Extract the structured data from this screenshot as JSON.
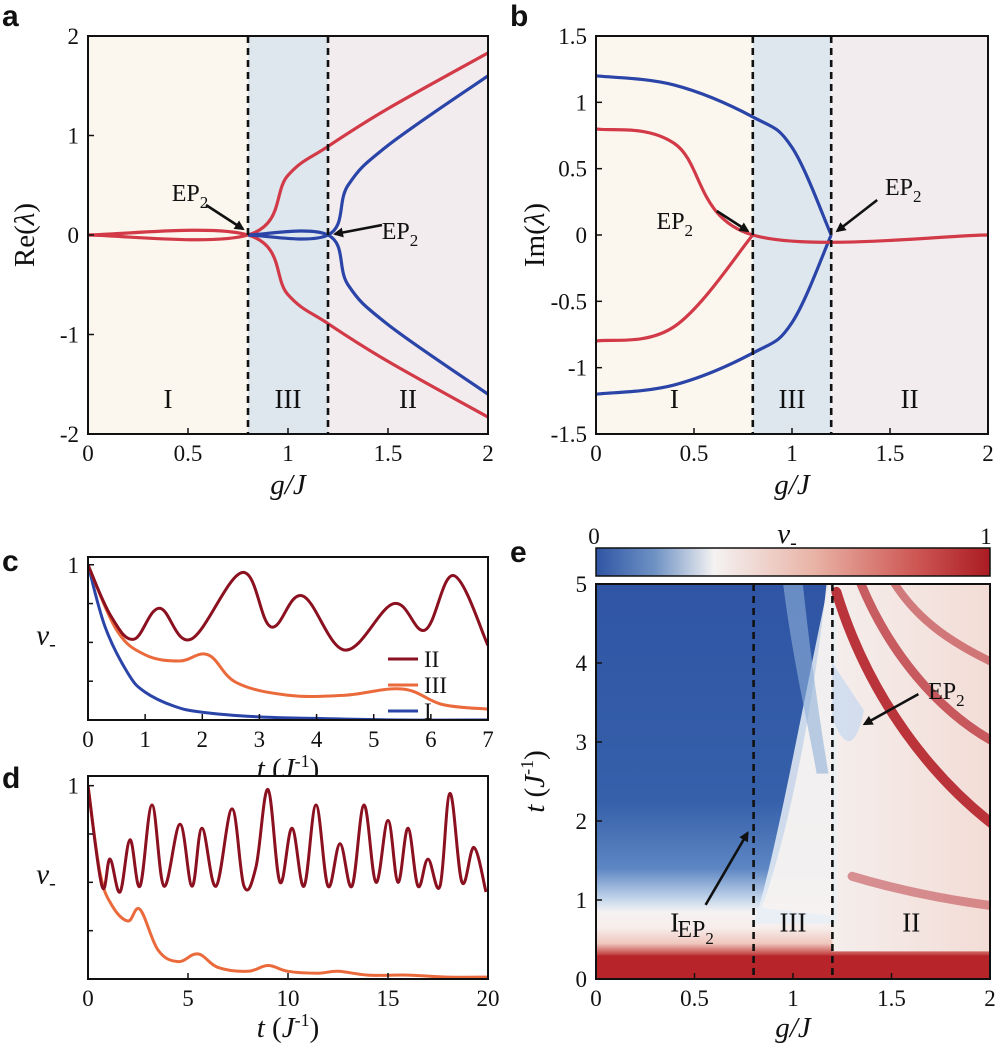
{
  "chart_data": [
    {
      "panel": "a",
      "type": "line",
      "xlabel": "g/J",
      "ylabel": "Re(λ)",
      "xlim": [
        0,
        2
      ],
      "ylim": [
        -2,
        2
      ],
      "xticks": [
        "0",
        "0.5",
        "1",
        "1.5",
        "2"
      ],
      "yticks": [
        "2",
        "1",
        "0",
        "-1",
        "-2"
      ],
      "regions": [
        {
          "label": "I",
          "from": 0,
          "to": 0.8,
          "color": "#fbf7ee"
        },
        {
          "label": "III",
          "from": 0.8,
          "to": 1.2,
          "color": "#dde7ed"
        },
        {
          "label": "II",
          "from": 1.2,
          "to": 2,
          "color": "#f2ecef"
        }
      ],
      "exceptional_points": [
        0.8,
        1.2
      ],
      "annotations": [
        {
          "text": "EP2",
          "x": 0.8,
          "y": 0
        },
        {
          "text": "EP2",
          "x": 1.2,
          "y": 0
        }
      ],
      "series": [
        {
          "color": "#d23a48",
          "x": [
            0,
            0.8,
            1.0,
            1.2,
            1.5,
            2.0
          ],
          "values": [
            0,
            0,
            0.6,
            0.89,
            1.27,
            1.83
          ]
        },
        {
          "color": "#d23a48",
          "x": [
            0,
            0.8,
            1.0,
            1.2,
            1.5,
            2.0
          ],
          "values": [
            0,
            0,
            -0.6,
            -0.89,
            -1.27,
            -1.83
          ]
        },
        {
          "color": "#2a44a8",
          "x": [
            0.8,
            1.2,
            1.3,
            1.5,
            2.0
          ],
          "values": [
            0,
            0,
            0.5,
            0.9,
            1.6
          ]
        },
        {
          "color": "#2a44a8",
          "x": [
            0.8,
            1.2,
            1.3,
            1.5,
            2.0
          ],
          "values": [
            0,
            0,
            -0.5,
            -0.9,
            -1.6
          ]
        }
      ]
    },
    {
      "panel": "b",
      "type": "line",
      "xlabel": "g/J",
      "ylabel": "Im(λ)",
      "xlim": [
        0,
        2
      ],
      "ylim": [
        -1.5,
        1.5
      ],
      "xticks": [
        "0",
        "0.5",
        "1",
        "1.5",
        "2"
      ],
      "yticks": [
        "1.5",
        "1",
        "0.5",
        "0",
        "-0.5",
        "-1",
        "-1.5"
      ],
      "regions": [
        {
          "label": "I",
          "from": 0,
          "to": 0.8,
          "color": "#fbf7ee"
        },
        {
          "label": "III",
          "from": 0.8,
          "to": 1.2,
          "color": "#dde7ed"
        },
        {
          "label": "II",
          "from": 1.2,
          "to": 2,
          "color": "#f2ecef"
        }
      ],
      "exceptional_points": [
        0.8,
        1.2
      ],
      "annotations": [
        {
          "text": "EP2",
          "x": 0.8,
          "y": 0
        },
        {
          "text": "EP2",
          "x": 1.2,
          "y": 0
        }
      ],
      "series": [
        {
          "color": "#2a44a8",
          "x": [
            0,
            0.4,
            0.8,
            1.0,
            1.2
          ],
          "values": [
            1.2,
            1.13,
            0.89,
            0.66,
            0
          ]
        },
        {
          "color": "#2a44a8",
          "x": [
            0,
            0.4,
            0.8,
            1.0,
            1.2
          ],
          "values": [
            -1.2,
            -1.13,
            -0.89,
            -0.66,
            0
          ]
        },
        {
          "color": "#d23a48",
          "x": [
            0,
            0.4,
            0.8,
            2.0
          ],
          "values": [
            0.8,
            0.69,
            0,
            0
          ]
        },
        {
          "color": "#d23a48",
          "x": [
            0,
            0.4,
            0.8
          ],
          "values": [
            -0.8,
            -0.69,
            0
          ]
        }
      ]
    },
    {
      "panel": "c",
      "type": "line",
      "xlabel": "t (J-1)",
      "ylabel": "v-",
      "xlim": [
        0,
        7
      ],
      "ylim": [
        0,
        1.05
      ],
      "xticks": [
        "0",
        "1",
        "2",
        "3",
        "4",
        "5",
        "6",
        "7"
      ],
      "yticks": [
        "1"
      ],
      "legend": "right",
      "series": [
        {
          "name": "II",
          "color": "#8b1020",
          "x": [
            0,
            0.4,
            0.8,
            1.25,
            1.8,
            2.7,
            3.2,
            3.75,
            4.5,
            5.35,
            5.9,
            6.4,
            7.0
          ],
          "values": [
            1.0,
            0.67,
            0.52,
            0.72,
            0.52,
            0.95,
            0.6,
            0.8,
            0.45,
            0.75,
            0.58,
            0.93,
            0.48
          ]
        },
        {
          "name": "III",
          "color": "#ea6a3c",
          "x": [
            0,
            0.5,
            1.0,
            1.6,
            2.1,
            2.6,
            3.5,
            4.5,
            5.5,
            6.2,
            7.0
          ],
          "values": [
            1.0,
            0.58,
            0.42,
            0.38,
            0.42,
            0.24,
            0.16,
            0.16,
            0.2,
            0.1,
            0.07
          ]
        },
        {
          "name": "I",
          "color": "#2a44a8",
          "x": [
            0,
            0.3,
            0.7,
            1.0,
            1.5,
            2.0,
            3.0,
            4.0,
            5.5,
            7.0
          ],
          "values": [
            1.0,
            0.6,
            0.3,
            0.18,
            0.09,
            0.05,
            0.02,
            0.01,
            0.0,
            0.0
          ]
        }
      ]
    },
    {
      "panel": "d",
      "type": "line",
      "xlabel": "t (J-1)",
      "ylabel": "v-",
      "xlim": [
        0,
        20
      ],
      "ylim": [
        0,
        1.05
      ],
      "xticks": [
        "0",
        "5",
        "10",
        "15",
        "20"
      ],
      "yticks": [
        "1"
      ],
      "series": [
        {
          "color": "#8b1020",
          "x": [
            0,
            0.7,
            1.1,
            1.6,
            2.1,
            2.6,
            3.2,
            3.8,
            4.6,
            5.2,
            5.7,
            6.4,
            7.2,
            7.8,
            8.4,
            9.0,
            9.6,
            10.2,
            10.8,
            11.4,
            12.0,
            12.6,
            13.2,
            13.8,
            14.4,
            15.0,
            15.5,
            16.0,
            16.5,
            17.0,
            17.6,
            18.1,
            18.7,
            19.3,
            19.9
          ],
          "values": [
            1.0,
            0.48,
            0.62,
            0.45,
            0.72,
            0.48,
            0.9,
            0.48,
            0.8,
            0.48,
            0.78,
            0.48,
            0.88,
            0.48,
            0.58,
            0.98,
            0.5,
            0.78,
            0.48,
            0.9,
            0.48,
            0.7,
            0.48,
            0.9,
            0.5,
            0.82,
            0.5,
            0.78,
            0.48,
            0.62,
            0.48,
            0.96,
            0.5,
            0.68,
            0.45
          ]
        },
        {
          "color": "#ea6a3c",
          "x": [
            0,
            0.6,
            1.2,
            2.0,
            2.6,
            3.5,
            4.5,
            5.5,
            6.5,
            8.0,
            9.0,
            10.0,
            11.5,
            12.5,
            14.0,
            16.0,
            18.0,
            20.0
          ],
          "values": [
            1.0,
            0.55,
            0.38,
            0.3,
            0.36,
            0.15,
            0.09,
            0.13,
            0.06,
            0.04,
            0.07,
            0.04,
            0.03,
            0.04,
            0.02,
            0.02,
            0.01,
            0.01
          ]
        }
      ]
    },
    {
      "panel": "e",
      "type": "heatmap",
      "xlabel": "g/J",
      "ylabel": "t (J-1)",
      "colorbar_label": "v-",
      "colorbar_range": [
        0,
        1
      ],
      "colorbar_ticks": [
        "0",
        "1"
      ],
      "colormap": [
        "#2f55a4",
        "#f6f1ee",
        "#aa1b22"
      ],
      "xlim": [
        0,
        2
      ],
      "ylim": [
        0,
        5
      ],
      "xticks": [
        "0",
        "0.5",
        "1",
        "1.5",
        "2"
      ],
      "yticks": [
        "5",
        "4",
        "3",
        "2",
        "1",
        "0"
      ],
      "regions": [
        {
          "label": "I",
          "from": 0,
          "to": 0.8
        },
        {
          "label": "III",
          "from": 0.8,
          "to": 1.2
        },
        {
          "label": "II",
          "from": 1.2,
          "to": 2
        }
      ],
      "exceptional_points": [
        0.8,
        1.2
      ],
      "annotations": [
        {
          "text": "EP2",
          "x": 0.8,
          "y": 1.9
        },
        {
          "text": "EP2",
          "x": 1.2,
          "y": 3.1
        }
      ]
    }
  ]
}
